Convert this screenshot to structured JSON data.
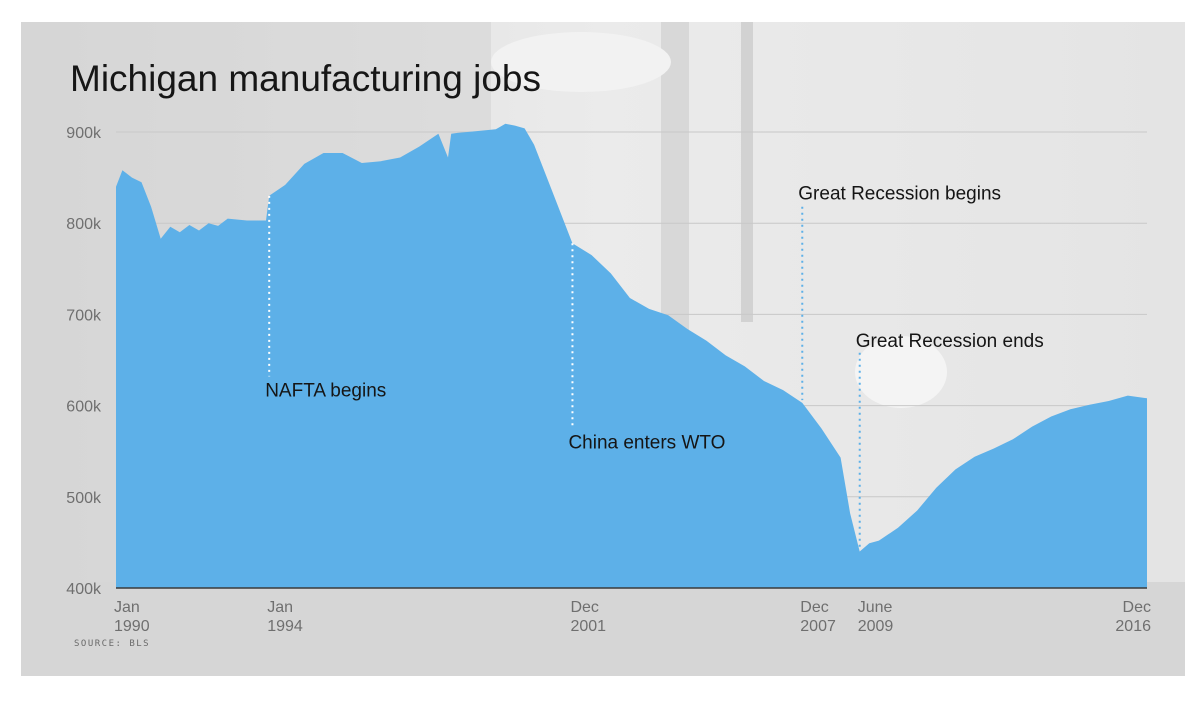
{
  "chart_data": {
    "type": "area",
    "title": "Michigan manufacturing jobs",
    "source": "SOURCE: BLS",
    "xlabel": "",
    "ylabel": "",
    "ylim": [
      400000,
      900000
    ],
    "y_tick_values": [
      400000,
      500000,
      600000,
      700000,
      800000,
      900000
    ],
    "y_tick_labels": [
      "400k",
      "500k",
      "600k",
      "700k",
      "800k",
      "900k"
    ],
    "x_ticks": [
      {
        "x": "1990-01",
        "line1": "Jan",
        "line2": "1990"
      },
      {
        "x": "1994-01",
        "line1": "Jan",
        "line2": "1994"
      },
      {
        "x": "2001-12",
        "line1": "Dec",
        "line2": "2001"
      },
      {
        "x": "2007-12",
        "line1": "Dec",
        "line2": "2007"
      },
      {
        "x": "2009-06",
        "line1": "June",
        "line2": "2009"
      },
      {
        "x": "2016-12",
        "line1": "Dec",
        "line2": "2016"
      }
    ],
    "color": "#5db0e8",
    "grid": true,
    "series": [
      {
        "points": [
          [
            "1990-01",
            840000
          ],
          [
            "1990-03",
            858000
          ],
          [
            "1990-06",
            850000
          ],
          [
            "1990-09",
            845000
          ],
          [
            "1990-12",
            818000
          ],
          [
            "1991-03",
            783000
          ],
          [
            "1991-06",
            796000
          ],
          [
            "1991-09",
            790000
          ],
          [
            "1991-12",
            798000
          ],
          [
            "1992-03",
            792000
          ],
          [
            "1992-06",
            800000
          ],
          [
            "1992-09",
            797000
          ],
          [
            "1992-12",
            805000
          ],
          [
            "1993-06",
            803000
          ],
          [
            "1993-12",
            803000
          ],
          [
            "1994-01",
            830000
          ],
          [
            "1994-06",
            842000
          ],
          [
            "1994-12",
            865000
          ],
          [
            "1995-06",
            877000
          ],
          [
            "1995-12",
            877000
          ],
          [
            "1996-06",
            866000
          ],
          [
            "1996-12",
            868000
          ],
          [
            "1997-06",
            872000
          ],
          [
            "1997-12",
            884000
          ],
          [
            "1998-06",
            898000
          ],
          [
            "1998-09",
            872000
          ],
          [
            "1998-10",
            898000
          ],
          [
            "1998-12",
            899000
          ],
          [
            "1999-06",
            901000
          ],
          [
            "1999-12",
            903000
          ],
          [
            "2000-03",
            909000
          ],
          [
            "2000-06",
            907000
          ],
          [
            "2000-09",
            904000
          ],
          [
            "2000-12",
            886000
          ],
          [
            "2001-06",
            832000
          ],
          [
            "2001-12",
            778000
          ],
          [
            "2002-06",
            765000
          ],
          [
            "2002-12",
            745000
          ],
          [
            "2003-06",
            718000
          ],
          [
            "2003-12",
            706000
          ],
          [
            "2004-06",
            699000
          ],
          [
            "2004-12",
            684000
          ],
          [
            "2005-06",
            671000
          ],
          [
            "2005-12",
            655000
          ],
          [
            "2006-06",
            643000
          ],
          [
            "2006-12",
            627000
          ],
          [
            "2007-06",
            617000
          ],
          [
            "2007-12",
            603000
          ],
          [
            "2008-06",
            575000
          ],
          [
            "2008-12",
            543000
          ],
          [
            "2009-03",
            482000
          ],
          [
            "2009-06",
            440000
          ],
          [
            "2009-09",
            449000
          ],
          [
            "2009-12",
            452000
          ],
          [
            "2010-06",
            466000
          ],
          [
            "2010-12",
            485000
          ],
          [
            "2011-06",
            510000
          ],
          [
            "2011-12",
            530000
          ],
          [
            "2012-06",
            544000
          ],
          [
            "2012-12",
            553000
          ],
          [
            "2013-06",
            563000
          ],
          [
            "2013-12",
            577000
          ],
          [
            "2014-06",
            588000
          ],
          [
            "2014-12",
            596000
          ],
          [
            "2015-06",
            601000
          ],
          [
            "2015-12",
            605000
          ],
          [
            "2016-06",
            611000
          ],
          [
            "2016-12",
            608000
          ]
        ]
      }
    ],
    "annotations": [
      {
        "x": "1994-01",
        "label": "NAFTA begins",
        "label_y": 610000,
        "line_from": 830000,
        "line_to": 632000,
        "color": "#ffffff"
      },
      {
        "x": "2001-12",
        "label": "China enters WTO",
        "label_y": 553000,
        "line_from": 778000,
        "line_to": 578000,
        "color": "#ffffff"
      },
      {
        "x": "2007-12",
        "label": "Great Recession begins",
        "label_y": 826000,
        "line_from": 818000,
        "line_to": 606000,
        "color": "#5db0e8"
      },
      {
        "x": "2009-06",
        "label": "Great Recession ends",
        "label_y": 664000,
        "line_from": 658000,
        "line_to": 443000,
        "color": "#5db0e8"
      }
    ]
  }
}
